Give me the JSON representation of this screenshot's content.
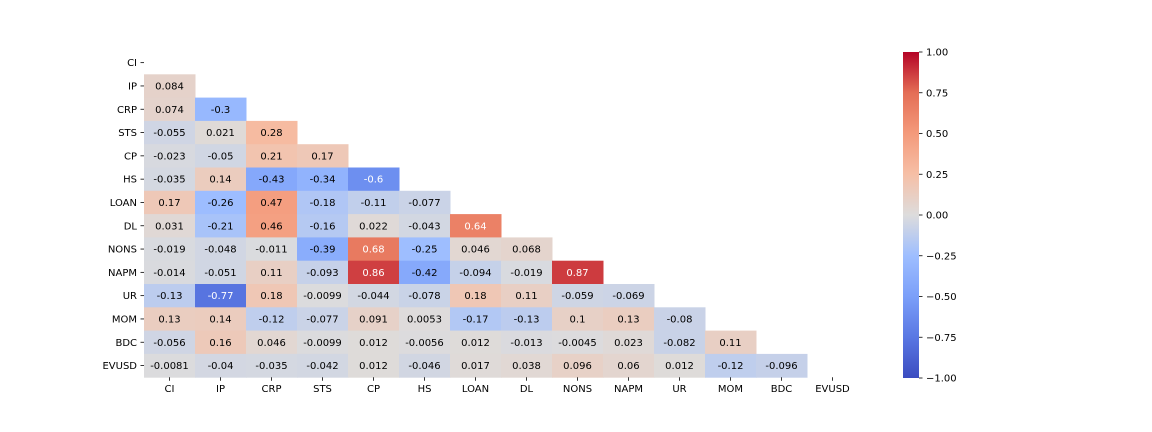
{
  "chart_data": {
    "type": "heatmap",
    "title": "",
    "xlabel": "",
    "ylabel": "",
    "mask": "upper-triangle-including-diagonal",
    "colormap": "coolwarm",
    "vmin": -1.0,
    "vmax": 1.0,
    "labels": [
      "CI",
      "IP",
      "CRP",
      "STS",
      "CP",
      "HS",
      "LOAN",
      "DL",
      "NONS",
      "NAPM",
      "UR",
      "MOM",
      "BDC",
      "EVUSD"
    ],
    "values": [
      [],
      [
        "0.084"
      ],
      [
        "0.074",
        "-0.3"
      ],
      [
        "-0.055",
        "0.021",
        "0.28"
      ],
      [
        "-0.023",
        "-0.05",
        "0.21",
        "0.17"
      ],
      [
        "-0.035",
        "0.14",
        "-0.43",
        "-0.34",
        "-0.6"
      ],
      [
        "0.17",
        "-0.26",
        "0.47",
        "-0.18",
        "-0.11",
        "-0.077"
      ],
      [
        "0.031",
        "-0.21",
        "0.46",
        "-0.16",
        "0.022",
        "-0.043",
        "0.64"
      ],
      [
        "-0.019",
        "-0.048",
        "-0.011",
        "-0.39",
        "0.68",
        "-0.25",
        "0.046",
        "0.068"
      ],
      [
        "-0.014",
        "-0.051",
        "0.11",
        "-0.093",
        "0.86",
        "-0.42",
        "-0.094",
        "-0.019",
        "0.87"
      ],
      [
        "-0.13",
        "-0.77",
        "0.18",
        "-0.0099",
        "-0.044",
        "-0.078",
        "0.18",
        "0.11",
        "-0.059",
        "-0.069"
      ],
      [
        "0.13",
        "0.14",
        "-0.12",
        "-0.077",
        "0.091",
        "0.0053",
        "-0.17",
        "-0.13",
        "0.1",
        "0.13",
        "-0.08"
      ],
      [
        "-0.056",
        "0.16",
        "0.046",
        "-0.0099",
        "0.012",
        "-0.0056",
        "0.012",
        "-0.013",
        "-0.0045",
        "0.023",
        "-0.082",
        "0.11"
      ],
      [
        "-0.0081",
        "-0.04",
        "-0.035",
        "-0.042",
        "0.012",
        "-0.046",
        "0.017",
        "0.038",
        "0.096",
        "0.06",
        "0.012",
        "-0.12",
        "-0.096"
      ]
    ],
    "colorbar": {
      "ticks": [
        1.0,
        0.75,
        0.5,
        0.25,
        0.0,
        -0.25,
        -0.5,
        -0.75,
        -1.0
      ],
      "tick_labels": [
        "1.00",
        "0.75",
        "0.50",
        "0.25",
        "0.00",
        "−0.25",
        "−0.50",
        "−0.75",
        "−1.00"
      ]
    }
  }
}
